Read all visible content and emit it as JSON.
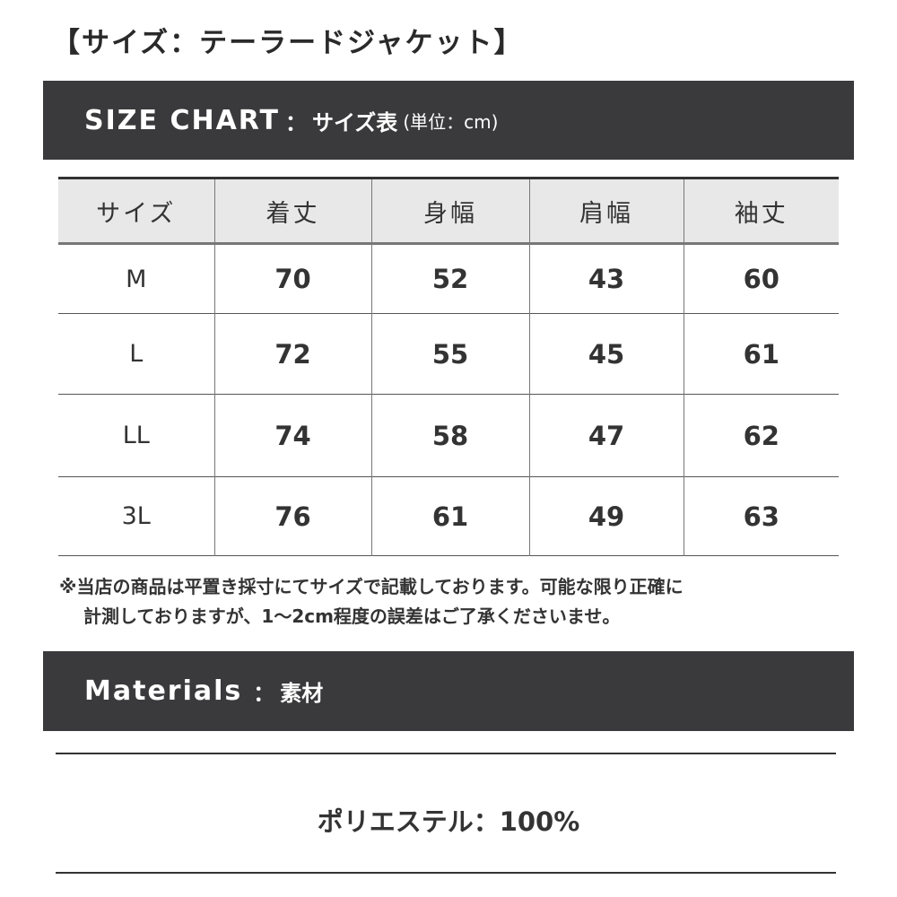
{
  "title": "【サイズ：テーラードジャケット】",
  "size_chart": {
    "heading_en": "SIZE CHART",
    "separator": "：",
    "heading_jp": "サイズ表",
    "unit": "(単位：cm)",
    "columns": [
      "サイズ",
      "着丈",
      "身幅",
      "肩幅",
      "袖丈"
    ],
    "rows": [
      [
        "M",
        "70",
        "52",
        "43",
        "60"
      ],
      [
        "L",
        "72",
        "55",
        "45",
        "61"
      ],
      [
        "LL",
        "74",
        "58",
        "47",
        "62"
      ],
      [
        "3L",
        "76",
        "61",
        "49",
        "63"
      ]
    ]
  },
  "note": {
    "line1": "※当店の商品は平置き採寸にてサイズで記載しております。可能な限り正確に",
    "line2": "計測しておりますが、1〜2cm程度の誤差はご了承くださいませ。"
  },
  "materials": {
    "heading_en": "Materials",
    "separator": "：",
    "heading_jp": "素材",
    "value": "ポリエステル：100%"
  },
  "colors": {
    "bar": "#3a3a3c",
    "header_bg": "#e8e8e8"
  }
}
